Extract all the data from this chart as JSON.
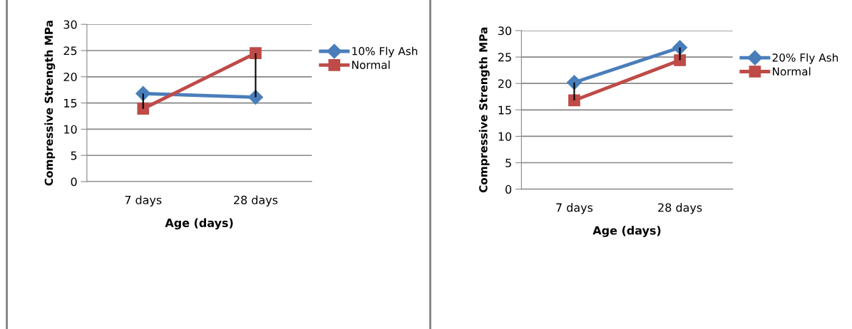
{
  "chart_data": [
    {
      "type": "line",
      "categories": [
        "7 days",
        "28 days"
      ],
      "xlabel": "Age (days)",
      "ylabel": "Compressive Strength MPa",
      "ylim": [
        0,
        30
      ],
      "yticks": [
        0,
        5,
        10,
        15,
        20,
        25,
        30
      ],
      "grid": "y",
      "legend": "right",
      "series": [
        {
          "name": "10% Fly Ash",
          "color": "#4a7ebb",
          "marker": "diamond",
          "values": [
            16.8,
            16.1
          ]
        },
        {
          "name": "Normal",
          "color": "#be4b48",
          "marker": "square",
          "values": [
            13.9,
            24.5
          ],
          "errors": [
            [
              13.9,
              16.8
            ],
            [
              16.1,
              24.5
            ]
          ]
        }
      ]
    },
    {
      "type": "line",
      "categories": [
        "7 days",
        "28 days"
      ],
      "xlabel": "Age (days)",
      "ylabel": "Compressive Strength MPa",
      "ylim": [
        0,
        30
      ],
      "yticks": [
        0,
        5,
        10,
        15,
        20,
        25,
        30
      ],
      "grid": "y",
      "legend": "right",
      "series": [
        {
          "name": "20% Fly Ash",
          "color": "#4a7ebb",
          "marker": "diamond",
          "values": [
            20.2,
            26.8
          ]
        },
        {
          "name": "Normal",
          "color": "#be4b48",
          "marker": "square",
          "values": [
            16.8,
            24.4
          ],
          "errors": [
            [
              16.8,
              20.2
            ],
            [
              24.4,
              26.8
            ]
          ]
        }
      ]
    }
  ]
}
